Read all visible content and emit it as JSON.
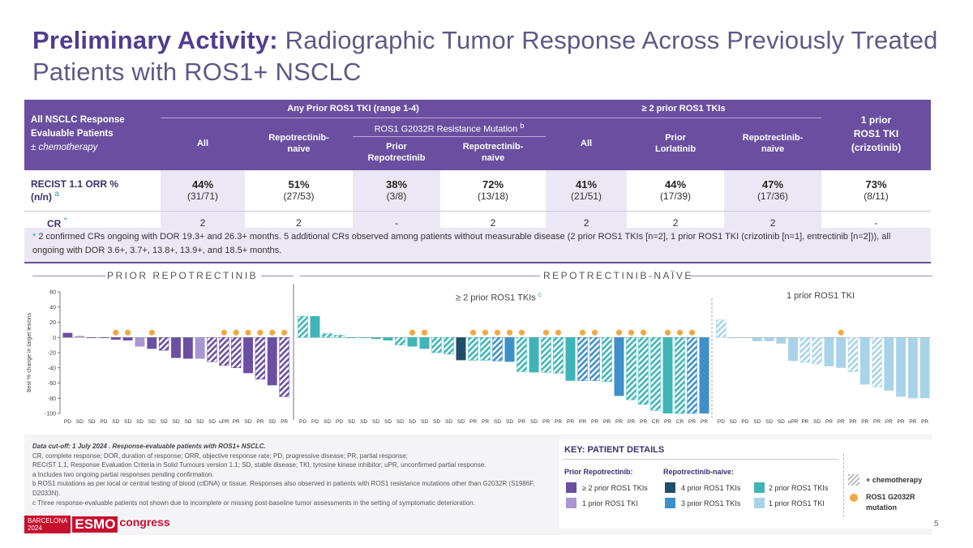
{
  "title": {
    "bold": "Preliminary Activity:",
    "rest": "Radiographic Tumor Response Across Previously Treated Patients with ROS1+ NSCLC"
  },
  "table": {
    "corner": {
      "line1": "All NSCLC Response",
      "line2": "Evaluable Patients",
      "line3": "± chemotherapy"
    },
    "groups": {
      "any_prior": "Any Prior ROS1 TKI (range 1-4)",
      "g2032r": "ROS1 G2032R Resistance Mutation",
      "g2032r_note": "b",
      "ge2": "≥ 2 prior ROS1 TKIs",
      "one_prior_l1": "1 prior",
      "one_prior_l2": "ROS1 TKI",
      "one_prior_l3": "(crizotinib)"
    },
    "cols": {
      "all1": "All",
      "repnaive1_l1": "Repotrectinib-",
      "repnaive1_l2": "naive",
      "priorrep_l1": "Prior",
      "priorrep_l2": "Repotrectinib",
      "repnaive2_l1": "Repotrectinib-",
      "repnaive2_l2": "naive",
      "all2": "All",
      "priorlor_l1": "Prior",
      "priorlor_l2": "Lorlatinib",
      "repnaive3_l1": "Repotrectinib-",
      "repnaive3_l2": "naive"
    },
    "orr_label_l1": "RECIST 1.1 ORR %",
    "orr_label_l2": "(n/n)",
    "orr_note": "a",
    "cr_label": "CR",
    "cr_note": "*",
    "orr": [
      {
        "pct": "44%",
        "nn": "(31/71)"
      },
      {
        "pct": "51%",
        "nn": "(27/53)"
      },
      {
        "pct": "38%",
        "nn": "(3/8)"
      },
      {
        "pct": "72%",
        "nn": "(13/18)"
      },
      {
        "pct": "41%",
        "nn": "(21/51)"
      },
      {
        "pct": "44%",
        "nn": "(17/39)"
      },
      {
        "pct": "47%",
        "nn": "(17/36)"
      },
      {
        "pct": "73%",
        "nn": "(8/11)"
      }
    ],
    "cr": [
      "2",
      "2",
      "-",
      "2",
      "2",
      "2",
      "2",
      "-"
    ]
  },
  "footnote": {
    "ast": "*",
    "text": "2 confirmed CRs ongoing with DOR 19.3+ and 26.3+ months. 5 additional CRs observed among patients without measurable disease (2 prior ROS1 TKIs [n=2], 1 prior ROS1 TKI (crizotinib [n=1], entrectinib [n=2])), all ongoing with DOR 3.6+, 3.7+, 13.8+, 13.9+, and 18.5+ months."
  },
  "sections": {
    "prior": "PRIOR REPOTRECTINIB",
    "naive": "REPOTRECTINIB-NAÏVE",
    "ge2": "≥ 2 prior ROS1 TKIs",
    "ge2_note": "c",
    "one": "1 prior ROS1 TKI"
  },
  "chart_data": {
    "type": "waterfall",
    "ylabel": "Best % change in target lesions",
    "ylim": [
      -100,
      60
    ],
    "yticks": [
      60,
      40,
      20,
      0,
      -20,
      -40,
      -60,
      -80,
      -100
    ],
    "colors": {
      "prior_ge2": "#6b4fa3",
      "prior_one": "#a897d2",
      "naive_4": "#1f4e6b",
      "naive_3": "#3f8fc9",
      "naive_2": "#3fb5b7",
      "naive_1": "#a9d3e8",
      "dot": "#f0a940"
    },
    "panels": [
      {
        "name": "Prior Repotrectinib",
        "bars": [
          {
            "v": 6,
            "c": "prior_ge2",
            "h": false,
            "dot": false,
            "l": "PD"
          },
          {
            "v": 2,
            "c": "prior_one",
            "h": false,
            "dot": false,
            "l": "SD"
          },
          {
            "v": 0,
            "c": "prior_ge2",
            "h": false,
            "dot": false,
            "l": "SD"
          },
          {
            "v": 0,
            "c": "prior_ge2",
            "h": false,
            "dot": false,
            "l": "PD"
          },
          {
            "v": -3,
            "c": "prior_ge2",
            "h": false,
            "dot": true,
            "l": "SD"
          },
          {
            "v": -4,
            "c": "prior_ge2",
            "h": false,
            "dot": true,
            "l": "SD"
          },
          {
            "v": -12,
            "c": "prior_one",
            "h": false,
            "dot": false,
            "l": "SD"
          },
          {
            "v": -15,
            "c": "prior_ge2",
            "h": false,
            "dot": true,
            "l": "SD"
          },
          {
            "v": -17,
            "c": "prior_ge2",
            "h": true,
            "dot": false,
            "l": "SD"
          },
          {
            "v": -27,
            "c": "prior_ge2",
            "h": false,
            "dot": false,
            "l": "SD"
          },
          {
            "v": -28,
            "c": "prior_ge2",
            "h": false,
            "dot": false,
            "l": "SD"
          },
          {
            "v": -28,
            "c": "prior_one",
            "h": false,
            "dot": false,
            "l": "SD"
          },
          {
            "v": -32,
            "c": "prior_ge2",
            "h": true,
            "dot": false,
            "l": "SD"
          },
          {
            "v": -37,
            "c": "prior_ge2",
            "h": true,
            "dot": true,
            "l": "uPR"
          },
          {
            "v": -40,
            "c": "prior_ge2",
            "h": true,
            "dot": true,
            "l": "PR"
          },
          {
            "v": -47,
            "c": "prior_ge2",
            "h": false,
            "dot": true,
            "l": "SD"
          },
          {
            "v": -55,
            "c": "prior_ge2",
            "h": true,
            "dot": true,
            "l": "PR"
          },
          {
            "v": -63,
            "c": "prior_ge2",
            "h": false,
            "dot": true,
            "l": "SD"
          },
          {
            "v": -78,
            "c": "prior_ge2",
            "h": true,
            "dot": true,
            "l": "PR"
          }
        ]
      },
      {
        "name": "Repotrectinib-naive ≥2 prior ROS1 TKIs",
        "bars": [
          {
            "v": 28,
            "c": "naive_2",
            "h": true,
            "dot": false,
            "l": "PD"
          },
          {
            "v": 28,
            "c": "naive_2",
            "h": false,
            "dot": false,
            "l": "PD"
          },
          {
            "v": 5,
            "c": "naive_2",
            "h": true,
            "dot": false,
            "l": "SD"
          },
          {
            "v": 3,
            "c": "naive_2",
            "h": true,
            "dot": false,
            "l": "PD"
          },
          {
            "v": 0,
            "c": "naive_2",
            "h": false,
            "dot": false,
            "l": "SD"
          },
          {
            "v": 0,
            "c": "naive_2",
            "h": false,
            "dot": false,
            "l": "SD"
          },
          {
            "v": -2,
            "c": "naive_2",
            "h": false,
            "dot": false,
            "l": "SD"
          },
          {
            "v": -4,
            "c": "naive_2",
            "h": false,
            "dot": false,
            "l": "SD"
          },
          {
            "v": -10,
            "c": "naive_2",
            "h": true,
            "dot": false,
            "l": "SD"
          },
          {
            "v": -12,
            "c": "naive_2",
            "h": false,
            "dot": true,
            "l": "SD"
          },
          {
            "v": -15,
            "c": "naive_2",
            "h": false,
            "dot": true,
            "l": "SD"
          },
          {
            "v": -20,
            "c": "naive_2",
            "h": true,
            "dot": false,
            "l": "SD"
          },
          {
            "v": -22,
            "c": "naive_2",
            "h": true,
            "dot": false,
            "l": "SD"
          },
          {
            "v": -30,
            "c": "naive_4",
            "h": false,
            "dot": false,
            "l": "SD"
          },
          {
            "v": -30,
            "c": "naive_2",
            "h": true,
            "dot": true,
            "l": "PR"
          },
          {
            "v": -30,
            "c": "naive_2",
            "h": true,
            "dot": true,
            "l": "PR"
          },
          {
            "v": -31,
            "c": "naive_3",
            "h": true,
            "dot": true,
            "l": "SD"
          },
          {
            "v": -32,
            "c": "naive_3",
            "h": false,
            "dot": true,
            "l": "SD"
          },
          {
            "v": -45,
            "c": "naive_2",
            "h": true,
            "dot": true,
            "l": "PR"
          },
          {
            "v": -46,
            "c": "naive_2",
            "h": false,
            "dot": false,
            "l": "SD"
          },
          {
            "v": -46,
            "c": "naive_2",
            "h": true,
            "dot": true,
            "l": "PR"
          },
          {
            "v": -47,
            "c": "naive_2",
            "h": true,
            "dot": true,
            "l": "PR"
          },
          {
            "v": -57,
            "c": "naive_2",
            "h": false,
            "dot": false,
            "l": "PR"
          },
          {
            "v": -57,
            "c": "naive_3",
            "h": true,
            "dot": true,
            "l": "PR"
          },
          {
            "v": -57,
            "c": "naive_3",
            "h": true,
            "dot": true,
            "l": "PR"
          },
          {
            "v": -58,
            "c": "naive_2",
            "h": true,
            "dot": false,
            "l": "PR"
          },
          {
            "v": -77,
            "c": "naive_3",
            "h": false,
            "dot": true,
            "l": "PR"
          },
          {
            "v": -82,
            "c": "naive_2",
            "h": true,
            "dot": true,
            "l": "PR"
          },
          {
            "v": -88,
            "c": "naive_2",
            "h": true,
            "dot": true,
            "l": "PR"
          },
          {
            "v": -96,
            "c": "naive_2",
            "h": true,
            "dot": false,
            "l": "CR"
          },
          {
            "v": -100,
            "c": "naive_2",
            "h": false,
            "dot": true,
            "l": "PR"
          },
          {
            "v": -100,
            "c": "naive_2",
            "h": true,
            "dot": true,
            "l": "CR"
          },
          {
            "v": -100,
            "c": "naive_3",
            "h": true,
            "dot": true,
            "l": "PR"
          },
          {
            "v": -100,
            "c": "naive_3",
            "h": false,
            "dot": false,
            "l": "PR"
          }
        ]
      },
      {
        "name": "Repotrectinib-naive 1 prior ROS1 TKI",
        "bars": [
          {
            "v": 23,
            "c": "naive_1",
            "h": true,
            "dot": false,
            "l": "PD"
          },
          {
            "v": 0,
            "c": "naive_1",
            "h": false,
            "dot": false,
            "l": "SD"
          },
          {
            "v": 0,
            "c": "naive_1",
            "h": false,
            "dot": false,
            "l": "PD"
          },
          {
            "v": -5,
            "c": "naive_1",
            "h": false,
            "dot": false,
            "l": "SD"
          },
          {
            "v": -5,
            "c": "naive_1",
            "h": false,
            "dot": false,
            "l": "SD"
          },
          {
            "v": -8,
            "c": "naive_1",
            "h": false,
            "dot": false,
            "l": "SD"
          },
          {
            "v": -31,
            "c": "naive_1",
            "h": false,
            "dot": false,
            "l": "uPR"
          },
          {
            "v": -33,
            "c": "naive_1",
            "h": true,
            "dot": false,
            "l": "PR"
          },
          {
            "v": -35,
            "c": "naive_1",
            "h": true,
            "dot": false,
            "l": "SD"
          },
          {
            "v": -38,
            "c": "naive_1",
            "h": false,
            "dot": false,
            "l": "PR"
          },
          {
            "v": -40,
            "c": "naive_1",
            "h": false,
            "dot": true,
            "l": "PR"
          },
          {
            "v": -45,
            "c": "naive_1",
            "h": true,
            "dot": false,
            "l": "PR"
          },
          {
            "v": -62,
            "c": "naive_1",
            "h": false,
            "dot": false,
            "l": "PR"
          },
          {
            "v": -65,
            "c": "naive_1",
            "h": true,
            "dot": false,
            "l": "PR"
          },
          {
            "v": -70,
            "c": "naive_1",
            "h": false,
            "dot": false,
            "l": "PR"
          },
          {
            "v": -78,
            "c": "naive_1",
            "h": false,
            "dot": false,
            "l": "PR"
          },
          {
            "v": -80,
            "c": "naive_1",
            "h": false,
            "dot": false,
            "l": "PR"
          },
          {
            "v": -80,
            "c": "naive_1",
            "h": false,
            "dot": false,
            "l": "PR"
          }
        ]
      }
    ]
  },
  "notes": {
    "cutoff": "Data cut-off: 1 July 2024 . Response-evaluable patients with ROS1+ NSCLC.",
    "line1": "CR, complete response; DOR, duration of response; ORR, objective response rate; PD, progressive disease; PR, partial response;",
    "line2": "RECIST 1.1, Response Evaluation Criteria in Solid Tumours version 1.1; SD, stable disease; TKI, tyrosine kinase inhibitor; uPR, unconfirmed partial response.",
    "a": "a Includes two ongoing partial responses pending confirmation.",
    "b": "b ROS1 mutations as per local or central testing of blood (ctDNA) or tissue. Responses also observed in patients with ROS1 resistance mutations other than G2032R (S1986F, D2033N).",
    "c": "c Three response-evaluable patients not shown due to incomplete or missing post-baseline tumor assessments in the setting of symptomatic deterioration."
  },
  "key": {
    "title": "KEY: PATIENT DETAILS",
    "prior_head": "Prior Repotrectinib:",
    "naive_head": "Repotrectinib-naive:",
    "prior_ge2": "≥ 2 prior ROS1 TKIs",
    "prior_one": "1 prior ROS1 TKI",
    "naive_4": "4 prior ROS1 TKIs",
    "naive_3": "3 prior ROS1 TKIs",
    "naive_2": "2 prior ROS1 TKIs",
    "naive_1": "1 prior ROS1 TKI",
    "chemo": "+ chemotherapy",
    "g2032r_l1": "ROS1 G2032R",
    "g2032r_l2": "mutation"
  },
  "logo": {
    "city": "BARCELONA",
    "year": "2024",
    "esmo": "ESMO",
    "congress": "congress"
  },
  "page_number": "5"
}
